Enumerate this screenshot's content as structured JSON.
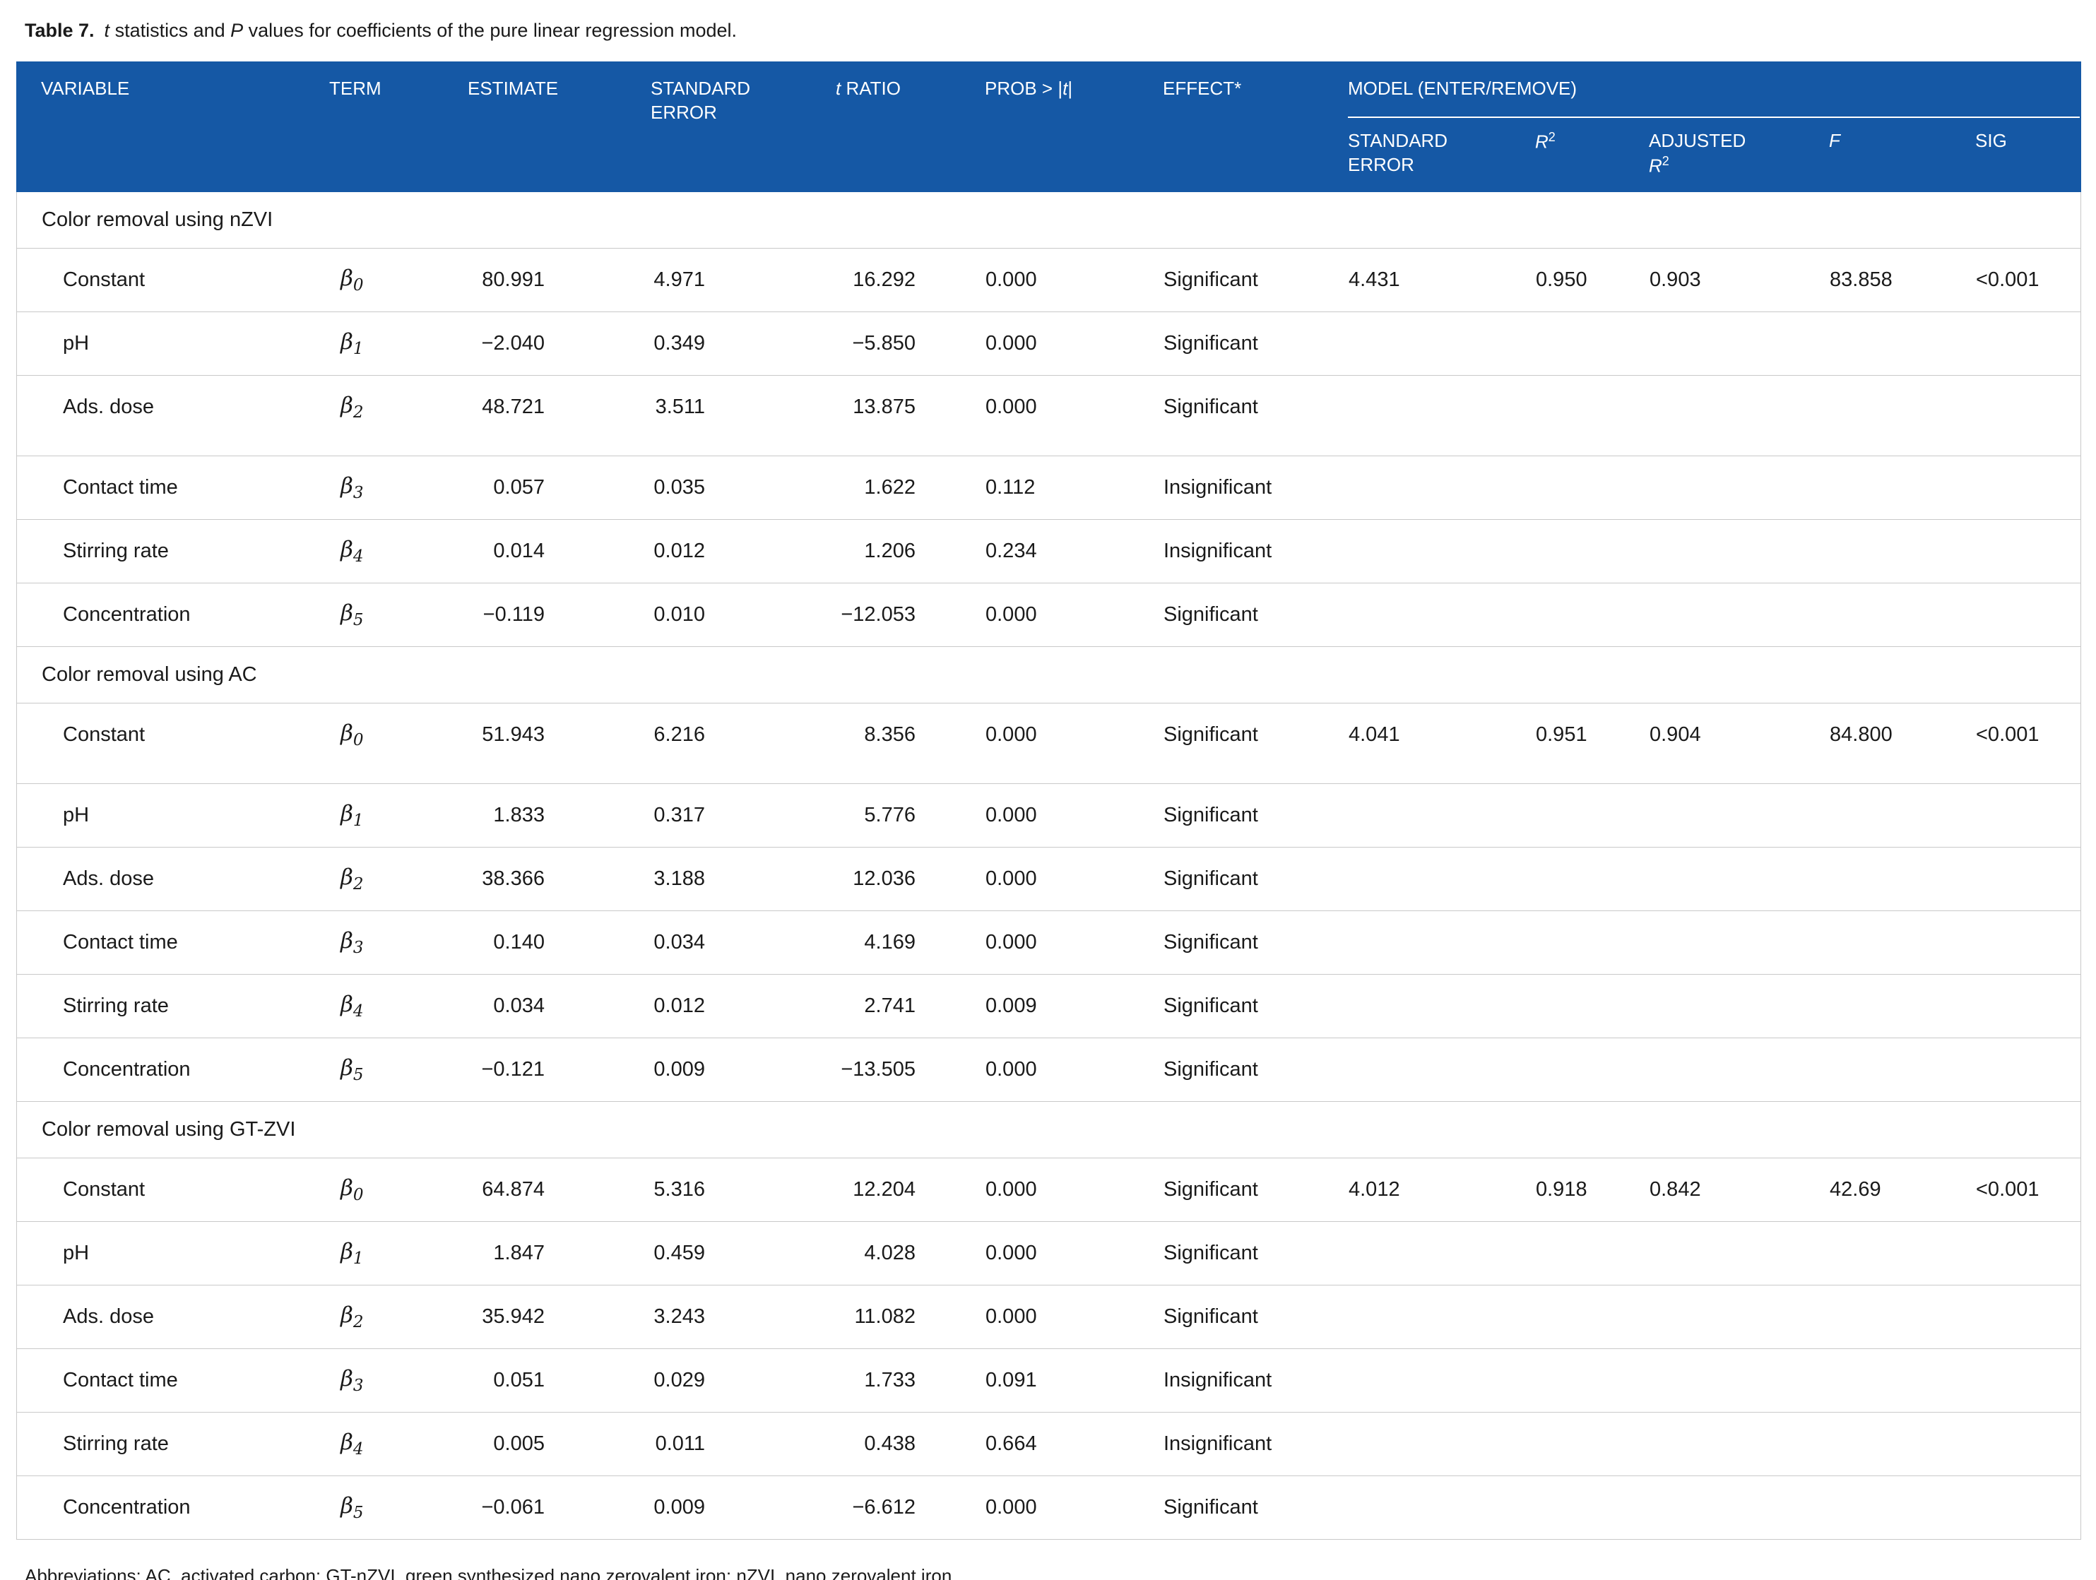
{
  "colors": {
    "header_bg": "#1558A5",
    "header_text": "#FFFFFF",
    "row_line": "#C9C9C9",
    "text": "#1A1A1A"
  },
  "title": {
    "label": "Table 7.",
    "t": "t",
    "mid": " statistics and ",
    "p": "P",
    "rest": " values for coefficients of the pure linear regression model."
  },
  "header": {
    "variable": "VARIABLE",
    "term": "TERM",
    "estimate": "ESTIMATE",
    "std_error": "STANDARD\nERROR",
    "t_ratio": {
      "t": "t",
      "rest": " RATIO"
    },
    "prob": {
      "pre": "PROB > |",
      "t": "t",
      "post": "|"
    },
    "effect": "EFFECT*",
    "model_group": "MODEL (ENTER/REMOVE)",
    "model": {
      "std_error": "STANDARD\nERROR",
      "r2": {
        "base": "R",
        "sup": "2"
      },
      "adjusted": {
        "line1": "ADJUSTED",
        "base": "R",
        "sup": "2"
      },
      "f": "F",
      "sig": "SIG"
    }
  },
  "table": {
    "term_symbol": "β",
    "sections": [
      {
        "title": "Color removal using nZVI",
        "rows": [
          {
            "variable": "Constant",
            "term_sub": "0",
            "estimate": "80.991",
            "std_error": "4.971",
            "t_ratio": "16.292",
            "prob": "0.000",
            "effect": "Significant",
            "model": {
              "std_error": "4.431",
              "r2": "0.950",
              "adj_r2": "0.903",
              "f": "83.858",
              "sig": "<0.001"
            }
          },
          {
            "variable": "pH",
            "term_sub": "1",
            "estimate": "−2.040",
            "std_error": "0.349",
            "t_ratio": "−5.850",
            "prob": "0.000",
            "effect": "Significant"
          },
          {
            "variable": "Ads. dose",
            "term_sub": "2",
            "estimate": "48.721",
            "std_error": "3.511",
            "t_ratio": "13.875",
            "prob": "0.000",
            "effect": "Significant",
            "tall": true
          },
          {
            "variable": "Contact time",
            "term_sub": "3",
            "estimate": "0.057",
            "std_error": "0.035",
            "t_ratio": "1.622",
            "prob": "0.112",
            "effect": "Insignificant"
          },
          {
            "variable": "Stirring rate",
            "term_sub": "4",
            "estimate": "0.014",
            "std_error": "0.012",
            "t_ratio": "1.206",
            "prob": "0.234",
            "effect": "Insignificant"
          },
          {
            "variable": "Concentration",
            "term_sub": "5",
            "estimate": "−0.119",
            "std_error": "0.010",
            "t_ratio": "−12.053",
            "prob": "0.000",
            "effect": "Significant"
          }
        ]
      },
      {
        "title": "Color removal using AC",
        "rows": [
          {
            "variable": "Constant",
            "term_sub": "0",
            "estimate": "51.943",
            "std_error": "6.216",
            "t_ratio": "8.356",
            "prob": "0.000",
            "effect": "Significant",
            "tall": true,
            "model": {
              "std_error": "4.041",
              "r2": "0.951",
              "adj_r2": "0.904",
              "f": "84.800",
              "sig": "<0.001"
            }
          },
          {
            "variable": "pH",
            "term_sub": "1",
            "estimate": "1.833",
            "std_error": "0.317",
            "t_ratio": "5.776",
            "prob": "0.000",
            "effect": "Significant"
          },
          {
            "variable": "Ads. dose",
            "term_sub": "2",
            "estimate": "38.366",
            "std_error": "3.188",
            "t_ratio": "12.036",
            "prob": "0.000",
            "effect": "Significant"
          },
          {
            "variable": "Contact time",
            "term_sub": "3",
            "estimate": "0.140",
            "std_error": "0.034",
            "t_ratio": "4.169",
            "prob": "0.000",
            "effect": "Significant"
          },
          {
            "variable": "Stirring rate",
            "term_sub": "4",
            "estimate": "0.034",
            "std_error": "0.012",
            "t_ratio": "2.741",
            "prob": "0.009",
            "effect": "Significant"
          },
          {
            "variable": "Concentration",
            "term_sub": "5",
            "estimate": "−0.121",
            "std_error": "0.009",
            "t_ratio": "−13.505",
            "prob": "0.000",
            "effect": "Significant"
          }
        ]
      },
      {
        "title": "Color removal using GT-ZVI",
        "rows": [
          {
            "variable": "Constant",
            "term_sub": "0",
            "estimate": "64.874",
            "std_error": "5.316",
            "t_ratio": "12.204",
            "prob": "0.000",
            "effect": "Significant",
            "model": {
              "std_error": "4.012",
              "r2": "0.918",
              "adj_r2": "0.842",
              "f": "42.69",
              "sig": "<0.001"
            }
          },
          {
            "variable": "pH",
            "term_sub": "1",
            "estimate": "1.847",
            "std_error": "0.459",
            "t_ratio": "4.028",
            "prob": "0.000",
            "effect": "Significant"
          },
          {
            "variable": "Ads. dose",
            "term_sub": "2",
            "estimate": "35.942",
            "std_error": "3.243",
            "t_ratio": "11.082",
            "prob": "0.000",
            "effect": "Significant"
          },
          {
            "variable": "Contact time",
            "term_sub": "3",
            "estimate": "0.051",
            "std_error": "0.029",
            "t_ratio": "1.733",
            "prob": "0.091",
            "effect": "Insignificant"
          },
          {
            "variable": "Stirring rate",
            "term_sub": "4",
            "estimate": "0.005",
            "std_error": "0.011",
            "t_ratio": "0.438",
            "prob": "0.664",
            "effect": "Insignificant"
          },
          {
            "variable": "Concentration",
            "term_sub": "5",
            "estimate": "−0.061",
            "std_error": "0.009",
            "t_ratio": "−6.612",
            "prob": "0.000",
            "effect": "Significant"
          }
        ]
      }
    ]
  },
  "footnote": "Abbreviations: AC, activated carbon; GT-nZVI, green synthesized nano zerovalent iron; nZVI, nano zerovalent iron."
}
